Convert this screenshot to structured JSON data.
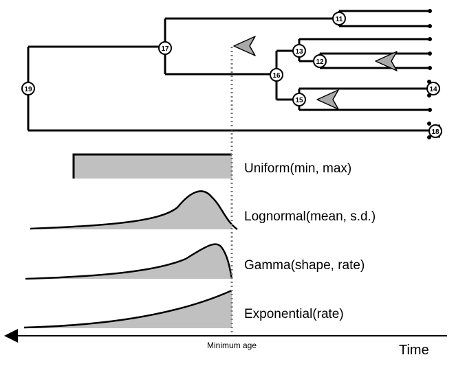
{
  "tree": {
    "nodes": [
      {
        "id": "node-19",
        "label": "19"
      },
      {
        "id": "node-17",
        "label": "17"
      },
      {
        "id": "node-11",
        "label": "11"
      },
      {
        "id": "node-16",
        "label": "16"
      },
      {
        "id": "node-13",
        "label": "13"
      },
      {
        "id": "node-12",
        "label": "12"
      },
      {
        "id": "node-15",
        "label": "15"
      },
      {
        "id": "node-14",
        "label": "14"
      },
      {
        "id": "node-18",
        "label": "18"
      }
    ],
    "calibration_marker_color": "#a9a9a9"
  },
  "distributions": [
    {
      "id": "uniform",
      "label": "Uniform(min, max)"
    },
    {
      "id": "lognormal",
      "label": "Lognormal(mean, s.d.)"
    },
    {
      "id": "gamma",
      "label": "Gamma(shape, rate)"
    },
    {
      "id": "exponential",
      "label": "Exponential(rate)"
    }
  ],
  "axis": {
    "min_age_label": "Minimum age",
    "time_label": "Time"
  },
  "colors": {
    "fill": "#c0c0c0",
    "line": "#000000",
    "dotted_line": "#777777"
  }
}
